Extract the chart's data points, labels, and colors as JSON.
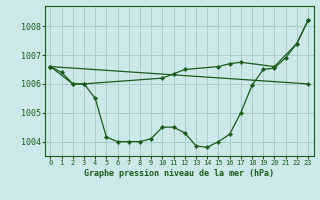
{
  "title": "Graphe pression niveau de la mer (hPa)",
  "background_color": "#cce8e8",
  "grid_color": "#aacccc",
  "line_color": "#1a5c1a",
  "marker_color": "#1a5c1a",
  "xlim": [
    -0.5,
    23.5
  ],
  "ylim": [
    1003.5,
    1008.7
  ],
  "yticks": [
    1004,
    1005,
    1006,
    1007,
    1008
  ],
  "xticks": [
    0,
    1,
    2,
    3,
    4,
    5,
    6,
    7,
    8,
    9,
    10,
    11,
    12,
    13,
    14,
    15,
    16,
    17,
    18,
    19,
    20,
    21,
    22,
    23
  ],
  "series1_x": [
    0,
    1,
    2,
    3,
    4,
    5,
    6,
    7,
    8,
    9,
    10,
    11,
    12,
    13,
    14,
    15,
    16,
    17,
    18,
    19,
    20,
    21,
    22,
    23
  ],
  "series1_y": [
    1006.6,
    1006.4,
    1006.0,
    1006.0,
    1005.5,
    1004.15,
    1004.0,
    1004.0,
    1004.0,
    1004.1,
    1004.5,
    1004.5,
    1004.3,
    1003.85,
    1003.8,
    1004.0,
    1004.25,
    1005.0,
    1005.95,
    1006.5,
    1006.55,
    1006.9,
    1007.4,
    1008.2
  ],
  "series2_x": [
    0,
    2,
    3,
    10,
    11,
    12,
    15,
    16,
    17,
    20,
    22,
    23
  ],
  "series2_y": [
    1006.6,
    1006.0,
    1006.0,
    1006.2,
    1006.35,
    1006.5,
    1006.6,
    1006.7,
    1006.75,
    1006.6,
    1007.4,
    1008.2
  ],
  "series3_x": [
    0,
    23
  ],
  "series3_y": [
    1006.6,
    1006.0
  ]
}
